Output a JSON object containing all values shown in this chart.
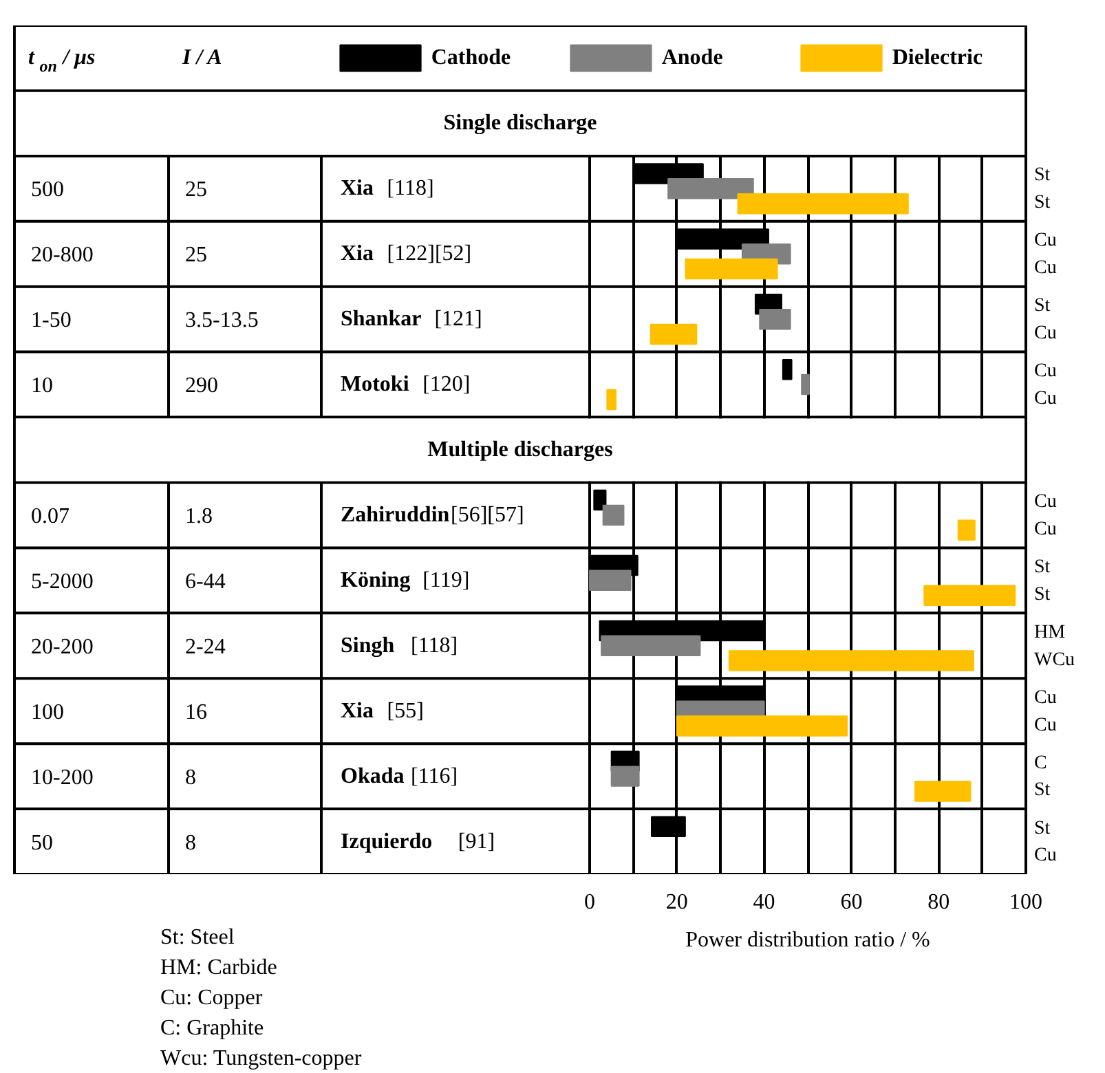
{
  "chart_data": {
    "type": "bar",
    "orientation": "horizontal",
    "legend": "top",
    "grid": "x",
    "tick_labels": "x",
    "xlabel": "Power distribution ratio / %",
    "categories": [
      null,
      "Xia [118]",
      "Xia [122][52]",
      "Shankar [121]",
      "Motoki [120]",
      null,
      "Zahiruddin[56][57]",
      "Köning [119]",
      "Singh [118]",
      "Xia [55]",
      "Okada [116]",
      "Izquierdo [91]"
    ],
    "xlim": [
      0,
      100
    ],
    "xticks": [
      0,
      {
        "value": 10,
        "label": null
      },
      20,
      {
        "value": 30,
        "label": null
      },
      40,
      {
        "value": 50,
        "label": null
      },
      60,
      {
        "value": 70,
        "label": null
      },
      80,
      {
        "value": 90,
        "label": null
      },
      100
    ],
    "series": [
      {
        "name": "Cathode",
        "color": "#000000",
        "base": [
          null,
          10,
          20,
          38,
          44.3,
          null,
          1,
          0,
          2.3,
          20,
          5,
          14.2
        ],
        "values": [
          null,
          16,
          21,
          6,
          2,
          null,
          2.7,
          11,
          37.9,
          20,
          6.3,
          7.7
        ]
      },
      {
        "name": "Anode",
        "color": "#808080",
        "base": [
          null,
          18,
          35,
          39,
          48.6,
          null,
          3.1,
          0,
          2.7,
          20,
          5,
          null
        ],
        "values": [
          null,
          19.5,
          11,
          7,
          1.7,
          null,
          4.7,
          9.4,
          22.6,
          20,
          6.3,
          null
        ]
      },
      {
        "name": "Dielectric",
        "color": "#ffc000",
        "base": [
          null,
          34,
          22,
          14,
          4,
          null,
          84.5,
          76.7,
          32,
          20,
          74.6,
          null
        ],
        "values": [
          null,
          39,
          21,
          10.5,
          2,
          null,
          3.8,
          20.8,
          56,
          39,
          12.7,
          null
        ]
      }
    ],
    "annotations": [
      "t$_{on}$ / μs",
      "I / A",
      "Single discharge",
      "500",
      "25",
      "St",
      "St",
      "20-800",
      "25",
      "Cu",
      "Cu",
      "1-50",
      "3.5-13.5",
      "St",
      "Cu",
      "10",
      "290",
      "Cu",
      "Cu",
      "Multiple discharges",
      "0.07",
      "1.8",
      "Cu",
      "Cu",
      "5-2000",
      "6-44",
      "St",
      "St",
      "20-200",
      "2-24",
      "HM",
      "WCu",
      "100",
      "16",
      "Cu",
      "Cu",
      "10-200",
      "8",
      "C",
      "St",
      "50",
      "8",
      "St",
      "Cu",
      "St: Steel",
      "HM: Carbide",
      "Cu: Copper",
      "C: Graphite",
      "Wcu: Tungsten-copper"
    ]
  }
}
